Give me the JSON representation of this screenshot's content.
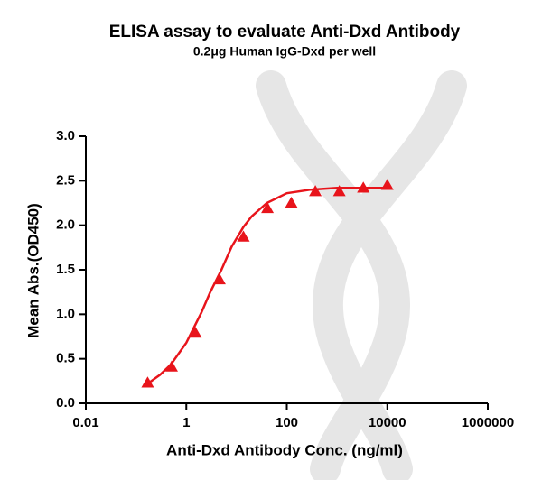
{
  "chart_data": {
    "type": "scatter",
    "title": "ELISA assay to evaluate Anti-Dxd Antibody",
    "subtitle": "0.2μg Human IgG-Dxd per well",
    "x_label": "Anti-Dxd Antibody Conc. (ng/ml)",
    "y_label": "Mean Abs.(OD450)",
    "x_scale": "log",
    "xlim": [
      0.01,
      1000000
    ],
    "xticks": [
      0.01,
      1,
      100,
      10000,
      1000000
    ],
    "ylim": [
      0,
      3
    ],
    "yticks": [
      {
        "value": 0,
        "label": "0.0"
      },
      0.5,
      {
        "value": 1,
        "label": "1.0"
      },
      1.5,
      {
        "value": 2,
        "label": "2.0"
      },
      2.5,
      {
        "value": 3,
        "label": "3.0"
      }
    ],
    "points": {
      "color": "#e8141b",
      "x": [
        0.17,
        0.51,
        1.52,
        4.57,
        13.7,
        41.2,
        123,
        370,
        1111,
        3333,
        10000
      ],
      "values": [
        0.23,
        0.41,
        0.79,
        1.39,
        1.87,
        2.19,
        2.25,
        2.38,
        2.38,
        2.42,
        2.45
      ]
    },
    "curve": {
      "color": "#e8141b",
      "x": [
        0.17,
        0.3,
        0.5,
        1,
        2,
        3,
        5,
        8,
        13.7,
        20,
        40,
        100,
        300,
        1000,
        3000,
        10000
      ],
      "values": [
        0.22,
        0.32,
        0.44,
        0.68,
        1.02,
        1.25,
        1.5,
        1.76,
        1.98,
        2.1,
        2.25,
        2.36,
        2.4,
        2.42,
        2.42,
        2.42
      ]
    }
  }
}
